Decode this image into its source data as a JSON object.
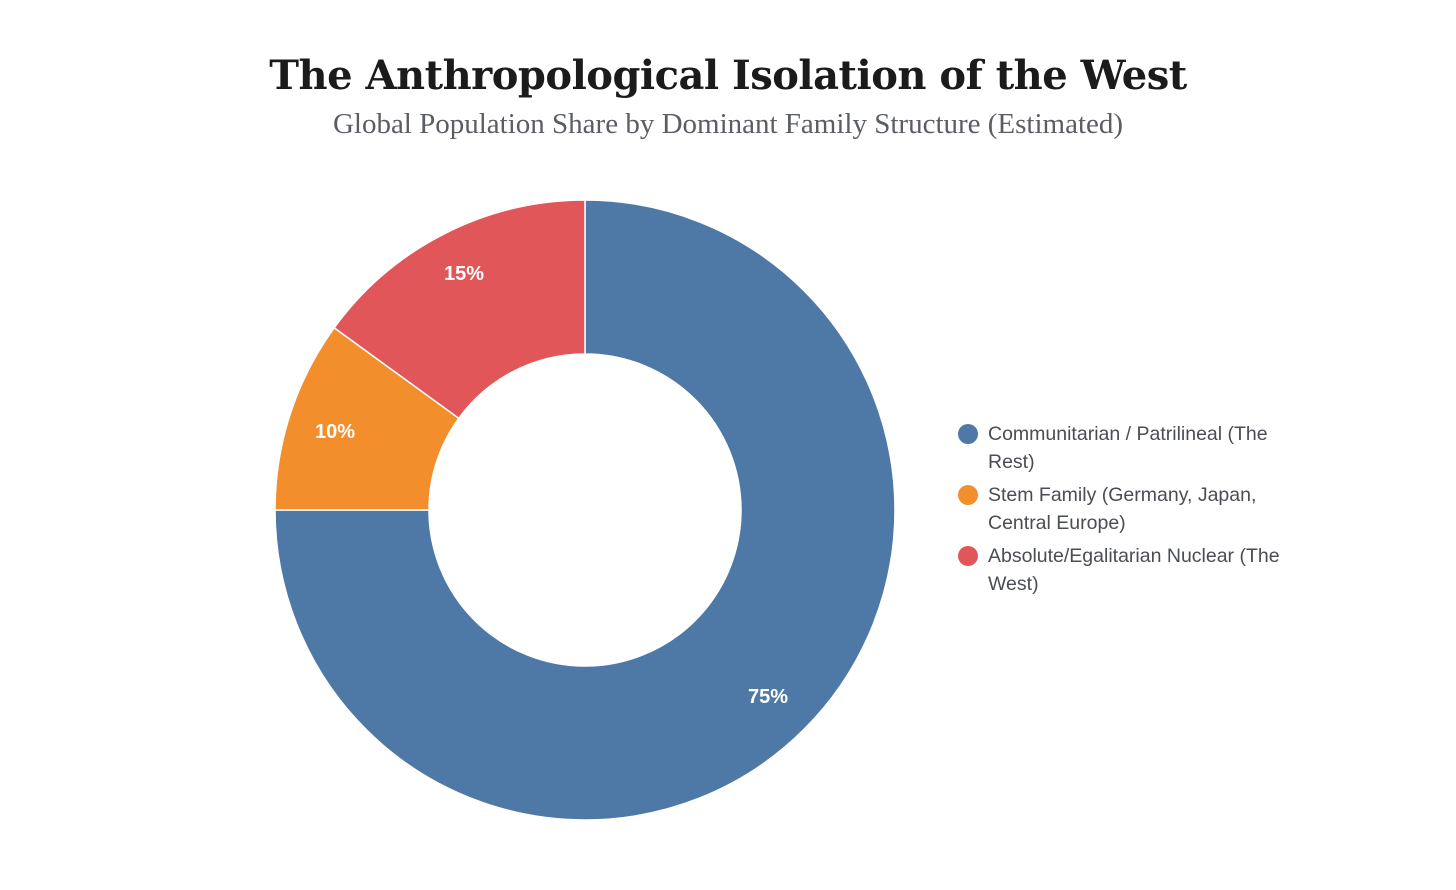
{
  "header": {
    "title": "The Anthropological Isolation of the West",
    "subtitle": "Global Population Share by Dominant Family Structure (Estimated)"
  },
  "legend": {
    "items": [
      {
        "label": "Communitarian / Patrilineal (The Rest)",
        "color": "#4E79A7"
      },
      {
        "label": "Stem Family (Germany, Japan, Central Europe)",
        "color": "#F28E2B"
      },
      {
        "label": "Absolute/Egalitarian Nuclear (The West)",
        "color": "#E15759"
      }
    ]
  },
  "slices": {
    "labels": [
      "75%",
      "10%",
      "15%"
    ]
  },
  "chart_data": {
    "type": "pie",
    "subtype": "donut",
    "title": "The Anthropological Isolation of the West",
    "subtitle": "Global Population Share by Dominant Family Structure (Estimated)",
    "categories": [
      "Communitarian / Patrilineal (The Rest)",
      "Stem Family (Germany, Japan, Central Europe)",
      "Absolute/Egalitarian Nuclear (The West)"
    ],
    "values": [
      75,
      10,
      15
    ],
    "unit": "%",
    "colors": [
      "#4E79A7",
      "#F28E2B",
      "#E15759"
    ],
    "data_labels": [
      "75%",
      "10%",
      "15%"
    ],
    "start_angle": "12 o'clock, clockwise",
    "legend_position": "right"
  }
}
